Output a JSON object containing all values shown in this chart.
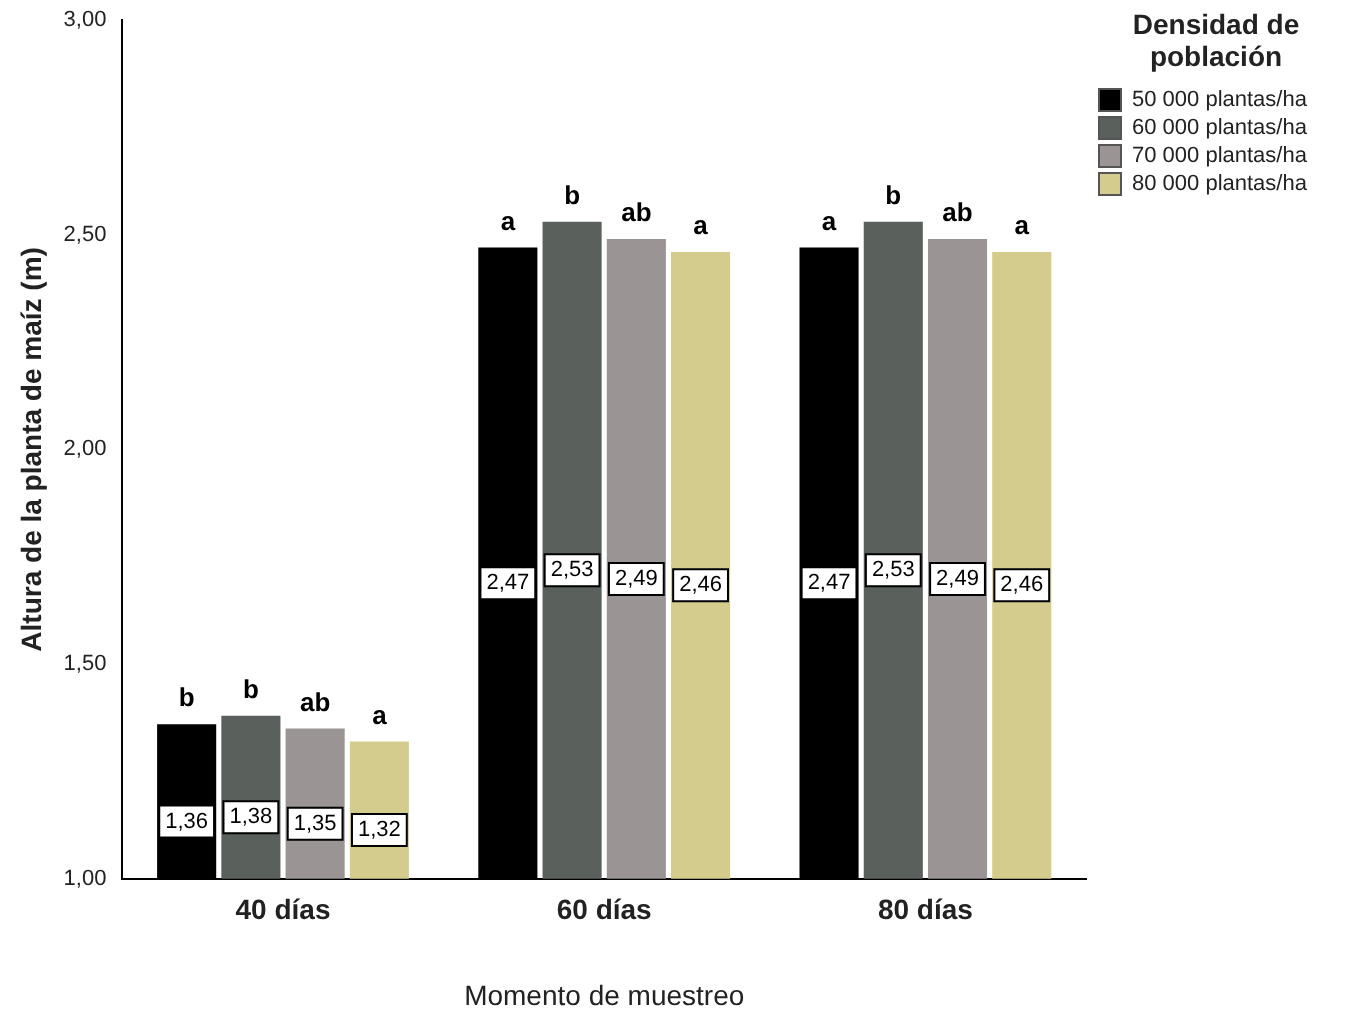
{
  "chart_data": {
    "type": "bar",
    "xlabel": "Momento de muestreo",
    "ylabel": "Altura de la planta de maíz (m)",
    "legend_title": "Densidad de población",
    "categories": [
      "40 días",
      "60 días",
      "80 días"
    ],
    "series": [
      {
        "name": "50 000 plantas/ha",
        "color": "#000000",
        "values": [
          1.36,
          2.47,
          2.47
        ],
        "value_labels": [
          "1,36",
          "2,47",
          "2,47"
        ]
      },
      {
        "name": "60 000 plantas/ha",
        "color": "#5a615c",
        "values": [
          1.38,
          2.53,
          2.53
        ],
        "value_labels": [
          "1,38",
          "2,53",
          "2,53"
        ]
      },
      {
        "name": "70 000 plantas/ha",
        "color": "#9a9494",
        "values": [
          1.35,
          2.49,
          2.49
        ],
        "value_labels": [
          "1,35",
          "2,49",
          "2,49"
        ]
      },
      {
        "name": "80 000 plantas/ha",
        "color": "#d3cc8c",
        "values": [
          1.32,
          2.46,
          2.46
        ],
        "value_labels": [
          "1,32",
          "2,46",
          "2,46"
        ]
      }
    ],
    "ylim": [
      1,
      3
    ],
    "yticks": [
      {
        "value": 1,
        "label": "1,00"
      },
      {
        "value": 1.5,
        "label": "1,50"
      },
      {
        "value": 2,
        "label": "2,00"
      },
      {
        "value": 2.5,
        "label": "2,50"
      },
      {
        "value": 3,
        "label": "3,00"
      }
    ],
    "grid": false,
    "legend": "top right",
    "annotations": [
      "b",
      "b",
      "ab",
      "a",
      "a",
      "b",
      "ab",
      "a",
      "a",
      "b",
      "ab",
      "a"
    ]
  }
}
